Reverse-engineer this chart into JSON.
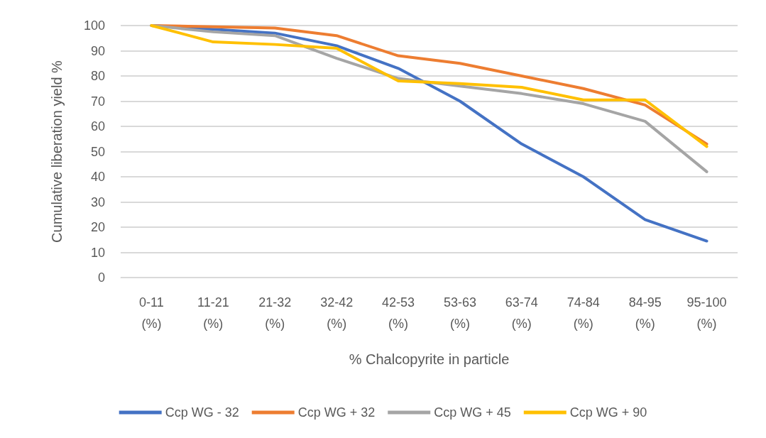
{
  "chart_data": {
    "type": "line",
    "xlabel": "% Chalcopyrite in particle",
    "ylabel": "Cumulative liberation yield %",
    "categories": [
      "0-11 (%)",
      "11-21 (%)",
      "21-32 (%)",
      "32-42 (%)",
      "42-53 (%)",
      "53-63 (%)",
      "63-74 (%)",
      "74-84 (%)",
      "84-95 (%)",
      "95-100 (%)"
    ],
    "series": [
      {
        "name": "Ccp WG - 32",
        "color": "#4472c4",
        "values": [
          100,
          98.5,
          97,
          92,
          83,
          70,
          53,
          40,
          23,
          14.5
        ]
      },
      {
        "name": "Ccp WG + 32",
        "color": "#ed7d31",
        "values": [
          100,
          99.5,
          99,
          96,
          88,
          85,
          80,
          75,
          68.5,
          53
        ]
      },
      {
        "name": "Ccp WG + 45",
        "color": "#a5a5a5",
        "values": [
          100,
          97.5,
          96,
          87,
          79,
          76,
          73,
          69,
          62,
          42
        ]
      },
      {
        "name": "Ccp WG + 90",
        "color": "#ffc000",
        "values": [
          100,
          93.5,
          92.5,
          91,
          78,
          77,
          75.5,
          70.5,
          70.5,
          52
        ]
      }
    ],
    "ylim": [
      0,
      100
    ],
    "yticks": [
      0,
      10,
      20,
      30,
      40,
      50,
      60,
      70,
      80,
      90,
      100
    ],
    "grid": "y",
    "legend": "bottom",
    "marker": "none",
    "line_style": "solid"
  }
}
